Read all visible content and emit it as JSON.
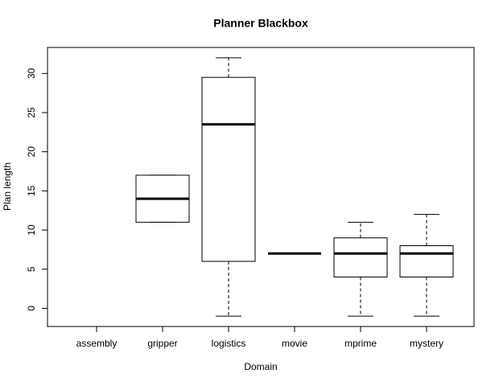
{
  "chart_data": {
    "type": "box",
    "title": "Planner Blackbox",
    "x_label": "Domain",
    "y_label": "Plan length",
    "categories": [
      "assembly",
      "gripper",
      "logistics",
      "movie",
      "mprime",
      "mystery"
    ],
    "min": [
      null,
      11,
      -1,
      7,
      -1,
      -1
    ],
    "q1": [
      null,
      11,
      6,
      7,
      4,
      4
    ],
    "median": [
      null,
      14,
      23.5,
      7,
      7,
      7
    ],
    "q3": [
      null,
      17,
      29.5,
      7,
      9,
      8
    ],
    "max": [
      null,
      17,
      32,
      7,
      11,
      12
    ],
    "color": "#000000",
    "ylim": [
      -2.32,
      33.32
    ],
    "yticks": [
      0,
      5,
      10,
      15,
      20,
      25,
      30
    ]
  }
}
